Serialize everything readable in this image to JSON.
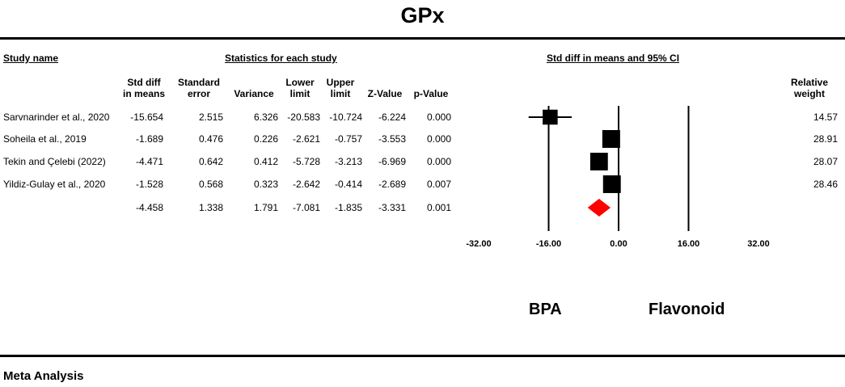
{
  "title": "GPx",
  "headers": {
    "study_name": "Study name",
    "stats_section": "Statistics for each study",
    "plot_section": "Std diff in means and 95% CI",
    "std_diff": [
      "Std diff",
      "in means"
    ],
    "std_err": [
      "Standard",
      "error"
    ],
    "variance": "Variance",
    "lower": [
      "Lower",
      "limit"
    ],
    "upper": [
      "Upper",
      "limit"
    ],
    "zvalue": "Z-Value",
    "pvalue": "p-Value",
    "weight": [
      "Relative",
      "weight"
    ]
  },
  "rows": [
    {
      "study": "Sarvnarinder et al., 2020",
      "std_diff": "-15.654",
      "std_err": "2.515",
      "variance": "6.326",
      "lower": "-20.583",
      "upper": "-10.724",
      "z": "-6.224",
      "p": "0.000",
      "weight": "14.57"
    },
    {
      "study": "Soheila et al., 2019",
      "std_diff": "-1.689",
      "std_err": "0.476",
      "variance": "0.226",
      "lower": "-2.621",
      "upper": "-0.757",
      "z": "-3.553",
      "p": "0.000",
      "weight": "28.91"
    },
    {
      "study": "Tekin and Çelebi (2022)",
      "std_diff": "-4.471",
      "std_err": "0.642",
      "variance": "0.412",
      "lower": "-5.728",
      "upper": "-3.213",
      "z": "-6.969",
      "p": "0.000",
      "weight": "28.07"
    },
    {
      "study": "Yildiz-Gulay et al., 2020",
      "std_diff": "-1.528",
      "std_err": "0.568",
      "variance": "0.323",
      "lower": "-2.642",
      "upper": "-0.414",
      "z": "-2.689",
      "p": "0.007",
      "weight": "28.46"
    }
  ],
  "summary": {
    "std_diff": "-4.458",
    "std_err": "1.338",
    "variance": "1.791",
    "lower": "-7.081",
    "upper": "-1.835",
    "z": "-3.331",
    "p": "0.001"
  },
  "left_label": "BPA",
  "right_label": "Flavonoid",
  "footer": "Meta Analysis",
  "chart_data": {
    "type": "forest",
    "title": "GPx",
    "xlim": [
      -32,
      32
    ],
    "x_ticks": [
      -32,
      -16,
      0,
      16,
      32
    ],
    "tick_labels": [
      "-32.00",
      "-16.00",
      "0.00",
      "16.00",
      "32.00"
    ],
    "studies": [
      {
        "name": "Sarvnarinder et al., 2020",
        "estimate": -15.654,
        "lower": -20.583,
        "upper": -10.724,
        "weight": 14.57
      },
      {
        "name": "Soheila et al., 2019",
        "estimate": -1.689,
        "lower": -2.621,
        "upper": -0.757,
        "weight": 28.91
      },
      {
        "name": "Tekin and Çelebi (2022)",
        "estimate": -4.471,
        "lower": -5.728,
        "upper": -3.213,
        "weight": 28.07
      },
      {
        "name": "Yildiz-Gulay et al., 2020",
        "estimate": -1.528,
        "lower": -2.642,
        "upper": -0.414,
        "weight": 28.46
      }
    ],
    "summary": {
      "estimate": -4.458,
      "lower": -7.081,
      "upper": -1.835
    },
    "colors": {
      "study_marker": "#000000",
      "summary_marker": "#ff0000"
    }
  }
}
